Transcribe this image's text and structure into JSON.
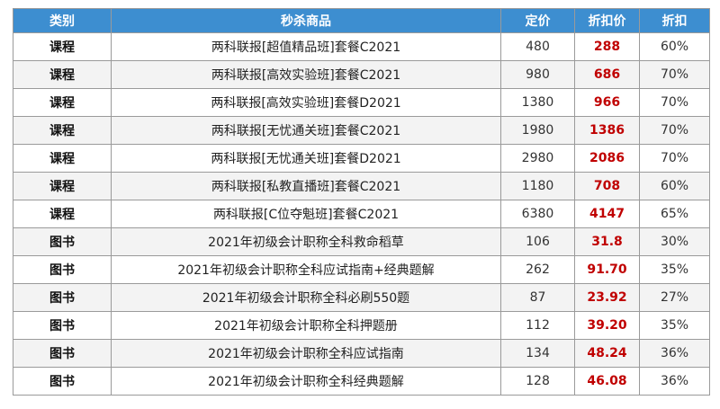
{
  "table": {
    "headers": {
      "category": "类别",
      "product": "秒杀商品",
      "price": "定价",
      "discount_price": "折扣价",
      "discount": "折扣"
    },
    "rows": [
      {
        "category": "课程",
        "product": "两科联报[超值精品班]套餐C2021",
        "price": "480",
        "discount_price": "288",
        "discount": "60%"
      },
      {
        "category": "课程",
        "product": "两科联报[高效实验班]套餐C2021",
        "price": "980",
        "discount_price": "686",
        "discount": "70%"
      },
      {
        "category": "课程",
        "product": "两科联报[高效实验班]套餐D2021",
        "price": "1380",
        "discount_price": "966",
        "discount": "70%"
      },
      {
        "category": "课程",
        "product": "两科联报[无忧通关班]套餐C2021",
        "price": "1980",
        "discount_price": "1386",
        "discount": "70%"
      },
      {
        "category": "课程",
        "product": "两科联报[无忧通关班]套餐D2021",
        "price": "2980",
        "discount_price": "2086",
        "discount": "70%"
      },
      {
        "category": "课程",
        "product": "两科联报[私教直播班]套餐C2021",
        "price": "1180",
        "discount_price": "708",
        "discount": "60%"
      },
      {
        "category": "课程",
        "product": "两科联报[C位夺魁班]套餐C2021",
        "price": "6380",
        "discount_price": "4147",
        "discount": "65%"
      },
      {
        "category": "图书",
        "product": "2021年初级会计职称全科救命稻草",
        "price": "106",
        "discount_price": "31.8",
        "discount": "30%"
      },
      {
        "category": "图书",
        "product": "2021年初级会计职称全科应试指南+经典题解",
        "price": "262",
        "discount_price": "91.70",
        "discount": "35%"
      },
      {
        "category": "图书",
        "product": "2021年初级会计职称全科必刷550题",
        "price": "87",
        "discount_price": "23.92",
        "discount": "27%"
      },
      {
        "category": "图书",
        "product": "2021年初级会计职称全科押题册",
        "price": "112",
        "discount_price": "39.20",
        "discount": "35%"
      },
      {
        "category": "图书",
        "product": "2021年初级会计职称全科应试指南",
        "price": "134",
        "discount_price": "48.24",
        "discount": "36%"
      },
      {
        "category": "图书",
        "product": "2021年初级会计职称全科经典题解",
        "price": "128",
        "discount_price": "46.08",
        "discount": "36%"
      }
    ]
  },
  "colors": {
    "header_bg": "#3d8ed0",
    "header_text": "#ffffff",
    "discount_price_text": "#c00000",
    "alt_row_bg": "#f3f3f3",
    "border": "#9a9a9a"
  }
}
